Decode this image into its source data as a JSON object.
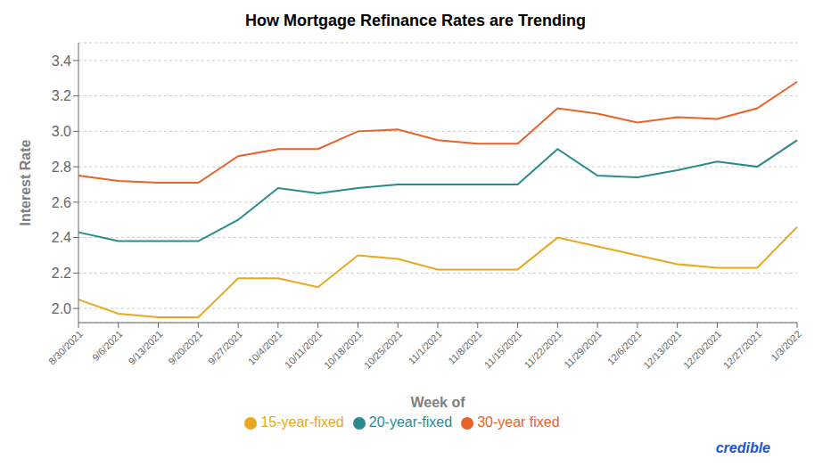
{
  "chart_data": {
    "type": "line",
    "title": "How Mortgage Refinance Rates are Trending",
    "xlabel": "Week of",
    "ylabel": "Interest Rate",
    "categories": [
      "8/30/2021",
      "9/6/2021",
      "9/13/2021",
      "9/20/2021",
      "9/27/2021",
      "10/4/2021",
      "10/11/2021",
      "10/18/2021",
      "10/25/2021",
      "11/1/2021",
      "11/8/2021",
      "11/15/2021",
      "11/22/2021",
      "11/29/2021",
      "12/6/2021",
      "12/13/2021",
      "12/20/2021",
      "12/27/2021",
      "1/3/2022"
    ],
    "series": [
      {
        "name": "30-year fixed",
        "color": "#E8622A",
        "values": [
          2.75,
          2.72,
          2.71,
          2.71,
          2.86,
          2.9,
          2.9,
          3.0,
          3.01,
          2.95,
          2.93,
          2.93,
          3.13,
          3.1,
          3.05,
          3.08,
          3.07,
          3.13,
          3.28
        ]
      },
      {
        "name": "20-year-fixed",
        "color": "#2A8A8C",
        "values": [
          2.43,
          2.38,
          2.38,
          2.38,
          2.5,
          2.68,
          2.65,
          2.68,
          2.7,
          2.7,
          2.7,
          2.7,
          2.9,
          2.75,
          2.74,
          2.78,
          2.83,
          2.8,
          2.95
        ]
      },
      {
        "name": "15-year-fixed",
        "color": "#E8A820",
        "values": [
          2.05,
          1.97,
          1.95,
          1.95,
          2.17,
          2.17,
          2.12,
          2.3,
          2.28,
          2.22,
          2.22,
          2.22,
          2.4,
          2.35,
          2.3,
          2.25,
          2.23,
          2.23,
          2.46
        ]
      }
    ],
    "ylim": [
      1.92,
      3.5
    ],
    "yticks": [
      {
        "value": 2,
        "label": "2.0"
      },
      2.2,
      2.4,
      2.6,
      2.8,
      {
        "value": 3,
        "label": "3.0"
      },
      3.2,
      3.4
    ],
    "grid": true,
    "legend": "bottom",
    "annotations": [
      "credible"
    ]
  }
}
